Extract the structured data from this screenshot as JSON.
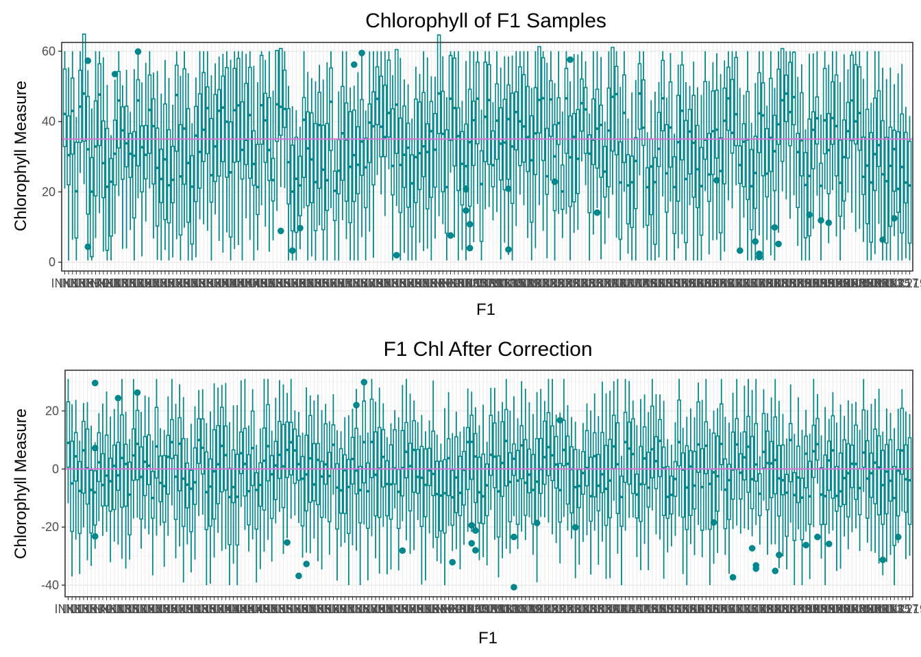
{
  "colors": {
    "box": "#00868B",
    "ref_line": "#DA70D6",
    "grid_major": "#EBEBEB",
    "grid_minor": "#F2F2F2",
    "panel_border": "#333333",
    "tick_text": "#4D4D4D"
  },
  "chart_data": [
    {
      "type": "boxplot",
      "title": "Chlorophyll of F1 Samples",
      "xlabel": "F1",
      "ylabel": "Chlorophyll Measure",
      "ylim": [
        -2.5,
        62.5
      ],
      "yticks": [
        0,
        20,
        40,
        60
      ],
      "reference_line": 35,
      "n_categories": 220,
      "category_label_prefix": "INK",
      "grid": true,
      "outliers": [
        {
          "category": 6,
          "value": 57.3
        },
        {
          "category": 6,
          "value": 4.4
        },
        {
          "category": 13,
          "value": 53.5
        },
        {
          "category": 19,
          "value": 59.9
        },
        {
          "category": 56,
          "value": 8.9
        },
        {
          "category": 59,
          "value": 3.3
        },
        {
          "category": 61,
          "value": 9.7
        },
        {
          "category": 75,
          "value": 56.2
        },
        {
          "category": 77,
          "value": 59.5
        },
        {
          "category": 86,
          "value": 2.0
        },
        {
          "category": 100,
          "value": 7.6
        },
        {
          "category": 104,
          "value": 20.7
        },
        {
          "category": 104,
          "value": 14.7
        },
        {
          "category": 105,
          "value": 10.8
        },
        {
          "category": 105,
          "value": 4.0
        },
        {
          "category": 115,
          "value": 20.9
        },
        {
          "category": 115,
          "value": 3.6
        },
        {
          "category": 131,
          "value": 57.6
        },
        {
          "category": 127,
          "value": 22.9
        },
        {
          "category": 138,
          "value": 14.1
        },
        {
          "category": 169,
          "value": 23.3
        },
        {
          "category": 175,
          "value": 3.3
        },
        {
          "category": 179,
          "value": 5.9
        },
        {
          "category": 180,
          "value": 2.4
        },
        {
          "category": 180,
          "value": 1.5
        },
        {
          "category": 184,
          "value": 9.9
        },
        {
          "category": 185,
          "value": 5.2
        },
        {
          "category": 193,
          "value": 13.5
        },
        {
          "category": 196,
          "value": 11.9
        },
        {
          "category": 198,
          "value": 11.2
        },
        {
          "category": 212,
          "value": 6.4
        },
        {
          "category": 215,
          "value": 12.5
        }
      ]
    },
    {
      "type": "boxplot",
      "title": "F1 Chl After Correction",
      "xlabel": "F1",
      "ylabel": "Chlorophyll Measure",
      "ylim": [
        -44,
        34
      ],
      "yticks": [
        -40,
        -20,
        0,
        20
      ],
      "reference_line": 0,
      "n_categories": 220,
      "category_label_prefix": "INK",
      "grid": true,
      "outliers": [
        {
          "category": 7,
          "value": 29.6
        },
        {
          "category": 7,
          "value": 7.2
        },
        {
          "category": 7,
          "value": -23.2
        },
        {
          "category": 13,
          "value": 24.4
        },
        {
          "category": 18,
          "value": 26.3
        },
        {
          "category": 57,
          "value": -25.3
        },
        {
          "category": 60,
          "value": -36.8
        },
        {
          "category": 62,
          "value": -32.7
        },
        {
          "category": 75,
          "value": 22.0
        },
        {
          "category": 77,
          "value": 29.9
        },
        {
          "category": 87,
          "value": -28.1
        },
        {
          "category": 100,
          "value": -32.1
        },
        {
          "category": 105,
          "value": -19.4
        },
        {
          "category": 105,
          "value": -25.6
        },
        {
          "category": 106,
          "value": -21.2
        },
        {
          "category": 106,
          "value": -28.0
        },
        {
          "category": 116,
          "value": -23.4
        },
        {
          "category": 116,
          "value": -40.7
        },
        {
          "category": 122,
          "value": -18.6
        },
        {
          "category": 128,
          "value": 16.8
        },
        {
          "category": 132,
          "value": -20.1
        },
        {
          "category": 168,
          "value": -18.4
        },
        {
          "category": 173,
          "value": -37.3
        },
        {
          "category": 178,
          "value": -27.3
        },
        {
          "category": 179,
          "value": -33.2
        },
        {
          "category": 179,
          "value": -34.3
        },
        {
          "category": 184,
          "value": -35.1
        },
        {
          "category": 185,
          "value": -29.6
        },
        {
          "category": 192,
          "value": -26.2
        },
        {
          "category": 195,
          "value": -23.4
        },
        {
          "category": 198,
          "value": -25.8
        },
        {
          "category": 212,
          "value": -31.3
        },
        {
          "category": 216,
          "value": -23.4
        }
      ]
    }
  ]
}
